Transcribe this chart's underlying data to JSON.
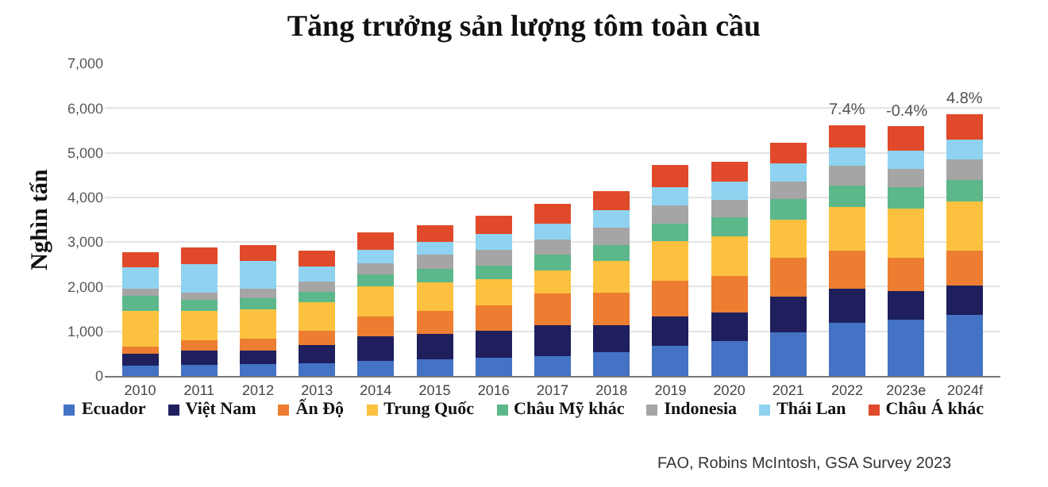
{
  "chart_data": {
    "type": "bar",
    "stacked": true,
    "title": "Tăng trưởng sản lượng tôm toàn cầu",
    "ylabel": "Nghìn tấn",
    "categories": [
      "2010",
      "2011",
      "2012",
      "2013",
      "2014",
      "2015",
      "2016",
      "2017",
      "2018",
      "2019",
      "2020",
      "2021",
      "2022",
      "2023e",
      "2024f"
    ],
    "series": [
      {
        "name": "Ecuador",
        "color": "#4472c4",
        "values": [
          230,
          250,
          260,
          290,
          340,
          380,
          410,
          450,
          540,
          670,
          780,
          980,
          1190,
          1270,
          1360
        ]
      },
      {
        "name": "Việt Nam",
        "color": "#1e1f5c",
        "values": [
          270,
          310,
          300,
          410,
          550,
          570,
          600,
          690,
          600,
          660,
          650,
          790,
          760,
          630,
          660
        ]
      },
      {
        "name": "Ấn Độ",
        "color": "#ed7d31",
        "values": [
          150,
          240,
          270,
          320,
          440,
          500,
          570,
          700,
          730,
          810,
          800,
          870,
          850,
          750,
          780
        ]
      },
      {
        "name": "Trung Quốc",
        "color": "#fcc23f",
        "values": [
          800,
          660,
          660,
          630,
          670,
          640,
          590,
          520,
          710,
          880,
          890,
          860,
          990,
          1100,
          1110
        ]
      },
      {
        "name": "Châu Mỹ khác",
        "color": "#5cb88a",
        "values": [
          350,
          240,
          250,
          240,
          280,
          300,
          300,
          350,
          360,
          390,
          440,
          470,
          470,
          470,
          470
        ]
      },
      {
        "name": "Indonesia",
        "color": "#a5a5a5",
        "values": [
          150,
          170,
          210,
          220,
          250,
          330,
          360,
          350,
          380,
          410,
          380,
          390,
          440,
          420,
          470
        ]
      },
      {
        "name": "Thái Lan",
        "color": "#8fd3f0",
        "values": [
          480,
          630,
          630,
          350,
          300,
          280,
          350,
          350,
          400,
          410,
          410,
          400,
          410,
          400,
          440
        ]
      },
      {
        "name": "Châu Á khác",
        "color": "#e04a2a",
        "values": [
          340,
          370,
          360,
          340,
          380,
          380,
          410,
          440,
          420,
          500,
          450,
          470,
          510,
          550,
          580
        ]
      }
    ],
    "ylim": [
      0,
      7000
    ],
    "yticks": [
      {
        "value": 0,
        "label": "0"
      },
      {
        "value": 1000,
        "label": "1,000"
      },
      {
        "value": 2000,
        "label": "2,000"
      },
      {
        "value": 3000,
        "label": "3,000"
      },
      {
        "value": 4000,
        "label": "4,000"
      },
      {
        "value": 5000,
        "label": "5,000"
      },
      {
        "value": 6000,
        "label": "6,000"
      },
      {
        "value": 7000,
        "label": "7,000"
      }
    ],
    "grid": "y",
    "legend": "bottom",
    "annotations": [
      {
        "text": "7.4%",
        "x": "2022",
        "y": 5620
      },
      {
        "text": "-0.4%",
        "x": "2023e",
        "y": 5590
      },
      {
        "text": "4.8%",
        "x": "2024f",
        "y": 5870
      },
      "FAO, Robins McIntosh, GSA Survey 2023"
    ]
  }
}
